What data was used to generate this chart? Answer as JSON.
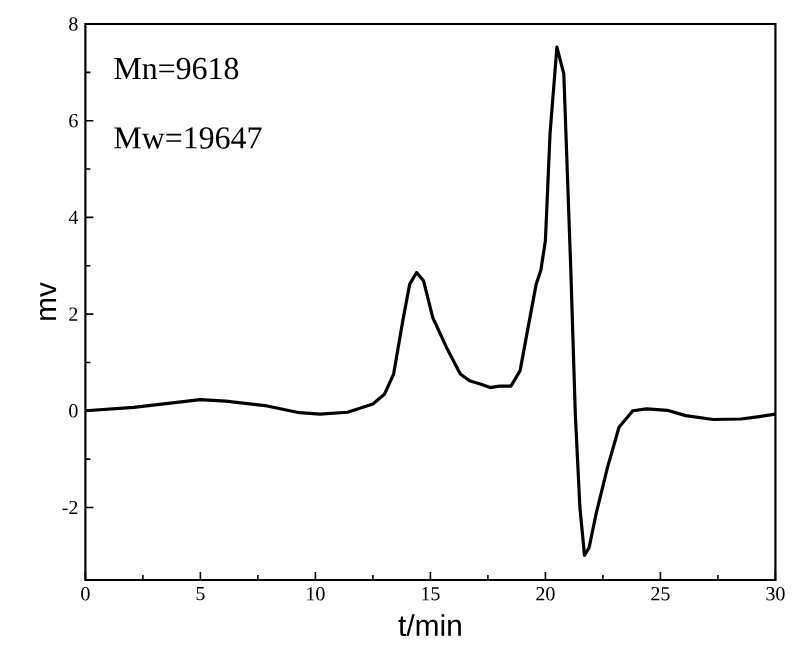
{
  "chart_data": {
    "type": "line",
    "xlabel": "t/min",
    "ylabel": "mv",
    "annotations": [
      "Mn=9618",
      "Mw=19647"
    ],
    "xlim": [
      0,
      30
    ],
    "ylim": [
      -3.5,
      8
    ],
    "xticks": [
      0,
      5,
      10,
      15,
      20,
      25,
      30
    ],
    "yticks": [
      -2,
      0,
      2,
      4,
      6,
      8
    ],
    "line_style": "solid",
    "series": [
      {
        "color": "#000000",
        "x": [
          0,
          2.1,
          5,
          6.1,
          7.9,
          9.3,
          10.2,
          11.4,
          12.5,
          13,
          13.4,
          13.8,
          14.1,
          14.4,
          14.7,
          15.1,
          15.7,
          16.3,
          16.7,
          17.2,
          17.6,
          18.0,
          18.5,
          18.9,
          19.3,
          19.6,
          19.8,
          20.0,
          20.2,
          20.5,
          20.8,
          21.1,
          21.3,
          21.5,
          21.7,
          21.9,
          22.2,
          22.7,
          23.2,
          23.8,
          24.4,
          25.3,
          26.1,
          27.3,
          28.5,
          29.3,
          30
        ],
        "values": [
          0,
          0.07,
          0.23,
          0.2,
          0.1,
          -0.04,
          -0.07,
          -0.03,
          0.14,
          0.34,
          0.76,
          1.86,
          2.62,
          2.86,
          2.69,
          1.93,
          1.31,
          0.76,
          0.62,
          0.55,
          0.48,
          0.51,
          0.51,
          0.83,
          1.86,
          2.62,
          2.9,
          3.52,
          5.72,
          7.52,
          6.97,
          2.97,
          -0.07,
          -2.0,
          -2.99,
          -2.83,
          -2.14,
          -1.17,
          -0.34,
          0,
          0.04,
          0.01,
          -0.1,
          -0.18,
          -0.17,
          -0.12,
          -0.07
        ]
      }
    ]
  }
}
